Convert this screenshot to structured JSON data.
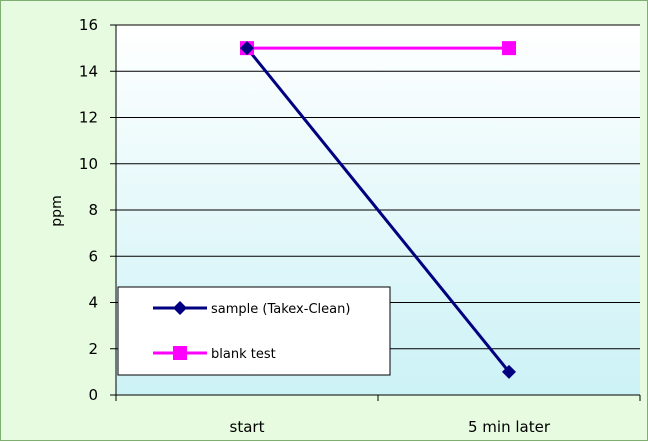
{
  "chart_data": {
    "type": "line",
    "categories": [
      "start",
      "5 min later"
    ],
    "series": [
      {
        "name": "sample (Takex-Clean)",
        "values": [
          15,
          1
        ],
        "color": "#000080",
        "marker": "diamond"
      },
      {
        "name": "blank test",
        "values": [
          15,
          15
        ],
        "color": "#ff00ff",
        "marker": "square"
      }
    ],
    "ylabel": "ppm",
    "ylim": [
      0,
      16
    ],
    "yticks": [
      "0",
      "2",
      "4",
      "6",
      "8",
      "10",
      "12",
      "14",
      "16"
    ],
    "grid": true,
    "legend_position": "lower-left",
    "colors": {
      "frame_background": "#e6fbe0",
      "plot_gradient_top": "#ffffff",
      "plot_gradient_bottom": "#ccf2f6"
    }
  }
}
